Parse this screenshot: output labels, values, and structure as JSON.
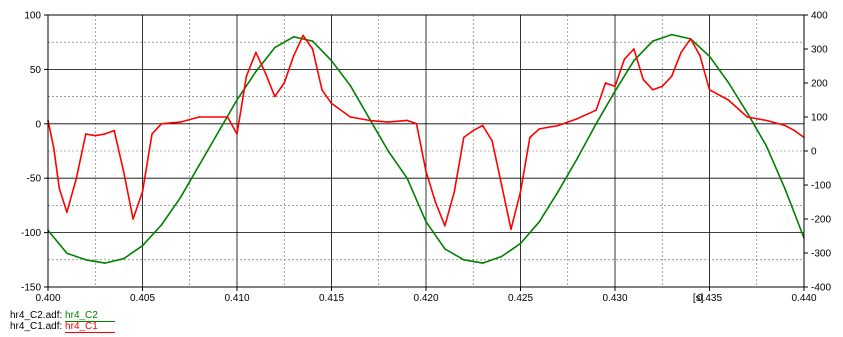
{
  "chart_data": {
    "type": "line",
    "x_unit_label": "[s]",
    "xlim": [
      0.4,
      0.44
    ],
    "ylim_left": [
      -150,
      100
    ],
    "ylim_right": [
      -400,
      400
    ],
    "x_ticks": [
      "0.400",
      "0.405",
      "0.410",
      "0.415",
      "0.420",
      "0.425",
      "0.430",
      "0.435",
      "0.440"
    ],
    "y_left_ticks": [
      "100",
      "50",
      "0",
      "-50",
      "-100",
      "-150"
    ],
    "y_right_ticks": [
      "400",
      "300",
      "200",
      "100",
      "0",
      "-100",
      "-200",
      "-300",
      "-400"
    ],
    "grid": true,
    "series": [
      {
        "name": "hr4_C2",
        "file": "hr4_C2.adf:",
        "axis": "left",
        "color": "#008000",
        "x": [
          0.4,
          0.401,
          0.402,
          0.403,
          0.404,
          0.405,
          0.406,
          0.407,
          0.408,
          0.409,
          0.41,
          0.411,
          0.412,
          0.413,
          0.414,
          0.415,
          0.416,
          0.417,
          0.418,
          0.419,
          0.42,
          0.421,
          0.422,
          0.423,
          0.424,
          0.425,
          0.426,
          0.427,
          0.428,
          0.429,
          0.43,
          0.431,
          0.432,
          0.433,
          0.434,
          0.435,
          0.436,
          0.437,
          0.438,
          0.439,
          0.44
        ],
        "y": [
          -98,
          -119,
          -125,
          -128,
          -124,
          -112,
          -93,
          -68,
          -38,
          -8,
          22,
          48,
          70,
          80,
          76,
          58,
          35,
          5,
          -25,
          -50,
          -90,
          -115,
          -125,
          -128,
          -122,
          -110,
          -90,
          -62,
          -32,
          0,
          30,
          58,
          76,
          82,
          78,
          62,
          38,
          10,
          -20,
          -60,
          -105
        ]
      },
      {
        "name": "hr4_C1",
        "file": "hr4_C1.adf:",
        "axis": "right",
        "color": "#ff0000",
        "x": [
          0.4,
          0.4003,
          0.4006,
          0.401,
          0.4015,
          0.402,
          0.4025,
          0.403,
          0.4035,
          0.404,
          0.4045,
          0.405,
          0.4055,
          0.406,
          0.407,
          0.408,
          0.409,
          0.4095,
          0.41,
          0.4105,
          0.411,
          0.4115,
          0.412,
          0.4125,
          0.413,
          0.4135,
          0.414,
          0.4145,
          0.415,
          0.416,
          0.417,
          0.418,
          0.419,
          0.4195,
          0.42,
          0.4205,
          0.421,
          0.4215,
          0.422,
          0.4225,
          0.423,
          0.4235,
          0.424,
          0.4245,
          0.425,
          0.4255,
          0.426,
          0.427,
          0.428,
          0.429,
          0.4295,
          0.43,
          0.4305,
          0.431,
          0.4315,
          0.432,
          0.4325,
          0.433,
          0.4335,
          0.434,
          0.4345,
          0.435,
          0.436,
          0.437,
          0.438,
          0.439,
          0.4395,
          0.44
        ],
        "y": [
          90,
          10,
          -110,
          -180,
          -80,
          50,
          45,
          50,
          60,
          -60,
          -200,
          -120,
          50,
          80,
          85,
          100,
          100,
          100,
          50,
          220,
          290,
          230,
          160,
          200,
          280,
          340,
          300,
          180,
          140,
          100,
          90,
          85,
          90,
          80,
          -60,
          -150,
          -220,
          -120,
          40,
          60,
          75,
          30,
          -100,
          -230,
          -120,
          40,
          65,
          75,
          95,
          120,
          200,
          190,
          270,
          300,
          210,
          180,
          190,
          220,
          290,
          330,
          280,
          180,
          150,
          100,
          90,
          75,
          60,
          40
        ]
      }
    ]
  }
}
